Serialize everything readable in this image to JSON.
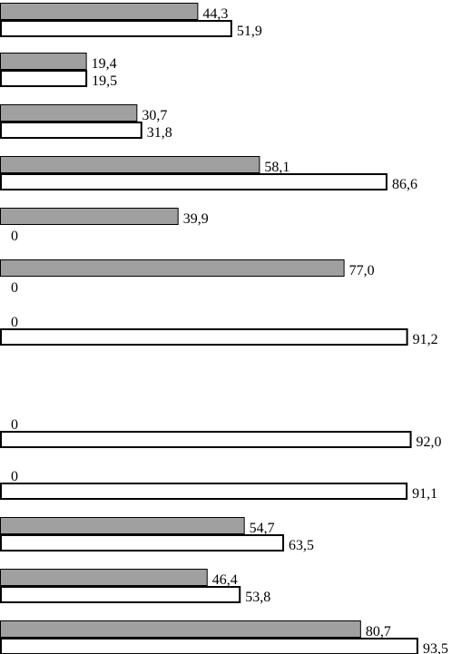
{
  "chart_data": {
    "type": "bar",
    "orientation": "horizontal",
    "title": "",
    "xlabel": "",
    "ylabel": "",
    "xlim": [
      0,
      93.5
    ],
    "grid": false,
    "legend": "none",
    "series_colors": [
      "#a0a0a0",
      "#ffffff"
    ],
    "groups": [
      {
        "values": [
          44.3,
          51.9
        ],
        "labels": [
          "44,3",
          "51,9"
        ]
      },
      {
        "values": [
          19.4,
          19.5
        ],
        "labels": [
          "19,4",
          "19,5"
        ]
      },
      {
        "values": [
          30.7,
          31.8
        ],
        "labels": [
          "30,7",
          "31,8"
        ]
      },
      {
        "values": [
          58.1,
          86.6
        ],
        "labels": [
          "58,1",
          "86,6"
        ]
      },
      {
        "values": [
          39.9,
          0
        ],
        "labels": [
          "39,9",
          "0"
        ]
      },
      {
        "values": [
          77.0,
          0
        ],
        "labels": [
          "77,0",
          "0"
        ]
      },
      {
        "values": [
          0,
          91.2
        ],
        "labels": [
          "0",
          "91,2"
        ]
      },
      {
        "values": [
          0,
          92.0
        ],
        "labels": [
          "0",
          "92,0"
        ]
      },
      {
        "values": [
          0,
          91.1
        ],
        "labels": [
          "0",
          "91,1"
        ]
      },
      {
        "values": [
          54.7,
          63.5
        ],
        "labels": [
          "54,7",
          "63,5"
        ]
      },
      {
        "values": [
          46.4,
          53.8
        ],
        "labels": [
          "46,4",
          "53,8"
        ]
      },
      {
        "values": [
          80.7,
          93.5
        ],
        "labels": [
          "80,7",
          "93,5"
        ]
      }
    ]
  }
}
